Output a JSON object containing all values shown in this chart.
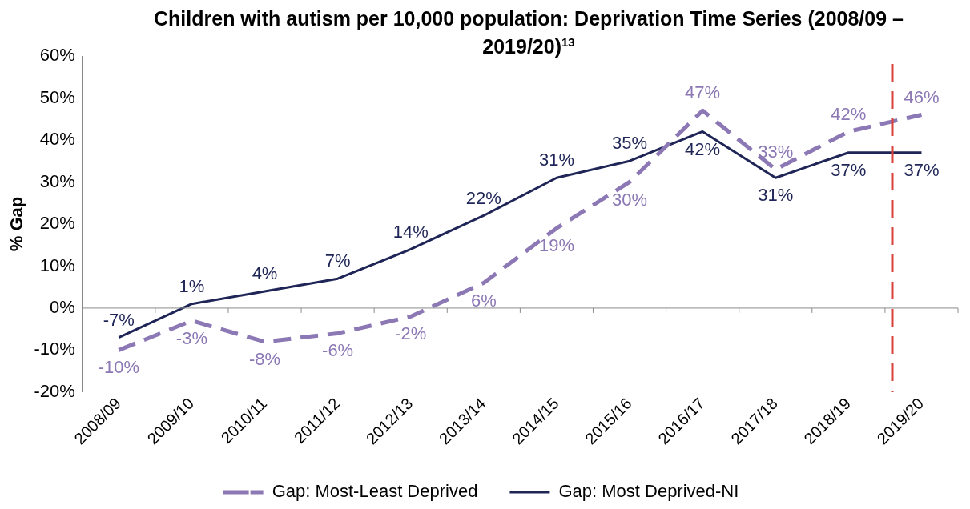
{
  "chart_data": {
    "type": "line",
    "title": "Children with autism per 10,000 population: Deprivation Time Series (2008/09 – 2019/20)$^{13}$",
    "ylabel": "% Gap",
    "categories": [
      "2008/09",
      "2009/10",
      "2010/11",
      "2011/12",
      "2012/13",
      "2013/14",
      "2014/15",
      "2015/16",
      "2016/17",
      "2017/18",
      "2018/19",
      "2019/20"
    ],
    "series": [
      {
        "name": "Gap: Most-Least Deprived",
        "color": "#8c78b4",
        "line_style": "dashed",
        "values": [
          -10,
          -3,
          -8,
          -6,
          -2,
          6,
          19,
          30,
          47,
          33,
          42,
          46
        ],
        "value_labels": [
          "-10%",
          "-3%",
          "-8%",
          "-6%",
          "-2%",
          "6%",
          "19%",
          "30%",
          "47%",
          "33%",
          "42%",
          "46%"
        ]
      },
      {
        "name": "Gap: Most Deprived-NI",
        "color": "#1f2657",
        "line_style": "solid",
        "values": [
          -7,
          1,
          4,
          7,
          14,
          22,
          31,
          35,
          42,
          31,
          37,
          37
        ],
        "value_labels": [
          "-7%",
          "1%",
          "4%",
          "7%",
          "14%",
          "22%",
          "31%",
          "35%",
          "42%",
          "31%",
          "37%",
          "37%"
        ]
      }
    ],
    "ylim": [
      -20,
      60
    ],
    "yticks": [
      {
        "value": -20,
        "label": "-20%"
      },
      {
        "value": -10,
        "label": "-10%"
      },
      {
        "value": 0,
        "label": "0%"
      },
      {
        "value": 10,
        "label": "10%"
      },
      {
        "value": 20,
        "label": "20%"
      },
      {
        "value": 30,
        "label": "30%"
      },
      {
        "value": 40,
        "label": "40%"
      },
      {
        "value": 50,
        "label": "50%"
      },
      {
        "value": 60,
        "label": "60%"
      }
    ],
    "ref_lines": [
      {
        "axis": "x",
        "value": "2019/20",
        "color": "#d9413a",
        "line_style": "dashed"
      },
      {
        "axis": "y",
        "value": 0,
        "color": "#8c8c8c",
        "line_style": "solid"
      }
    ],
    "grid": false,
    "legend": "bottom",
    "marker": "none"
  }
}
